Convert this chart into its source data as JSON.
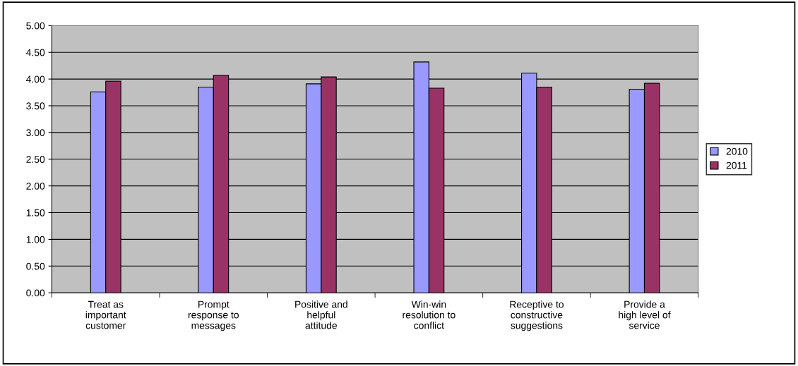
{
  "chart_data": {
    "type": "bar",
    "categories": [
      "Treat as\nimportant\ncustomer",
      "Prompt\nresponse to\nmessages",
      "Positive and\nhelpful\nattitude",
      "Win-win\nresolution to\nconflict",
      "Receptive to\nconstructive\nsuggestions",
      "Provide a\nhigh level of\nservice"
    ],
    "series": [
      {
        "name": "2010",
        "color": "#9999ff",
        "values": [
          3.76,
          3.85,
          3.91,
          4.32,
          4.11,
          3.81
        ]
      },
      {
        "name": "2011",
        "color": "#993366",
        "values": [
          3.96,
          4.07,
          4.04,
          3.83,
          3.85,
          3.92
        ]
      }
    ],
    "ylim": [
      0,
      5
    ],
    "yticks": [
      {
        "value": 0,
        "label": "0.00"
      },
      {
        "value": 0.5,
        "label": "0.50"
      },
      {
        "value": 1,
        "label": "1.00"
      },
      {
        "value": 1.5,
        "label": "1.50"
      },
      {
        "value": 2,
        "label": "2.00"
      },
      {
        "value": 2.5,
        "label": "2.50"
      },
      {
        "value": 3,
        "label": "3.00"
      },
      {
        "value": 3.5,
        "label": "3.50"
      },
      {
        "value": 4,
        "label": "4.00"
      },
      {
        "value": 4.5,
        "label": "4.50"
      },
      {
        "value": 5,
        "label": "5.00"
      }
    ],
    "grid": "y",
    "legend": "right"
  }
}
